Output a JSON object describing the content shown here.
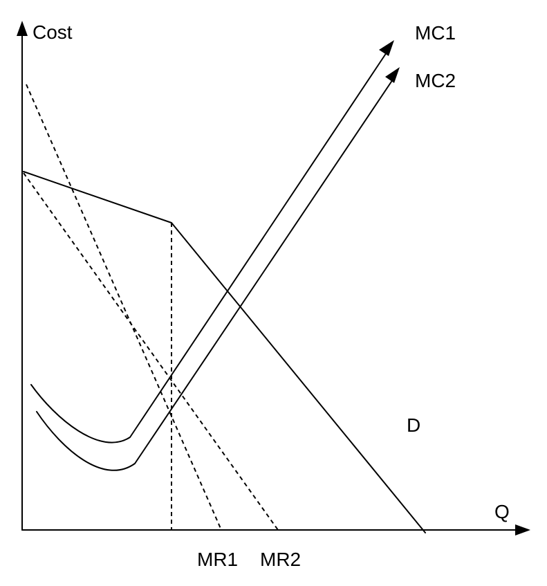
{
  "axes": {
    "y_label": "Cost",
    "x_label": "Q"
  },
  "curves": {
    "mc1_label": "MC1",
    "mc2_label": "MC2",
    "demand_label": "D",
    "mr1_label": "MR1",
    "mr2_label": "MR2"
  },
  "colors": {
    "ink": "#000000",
    "background": "#ffffff"
  }
}
